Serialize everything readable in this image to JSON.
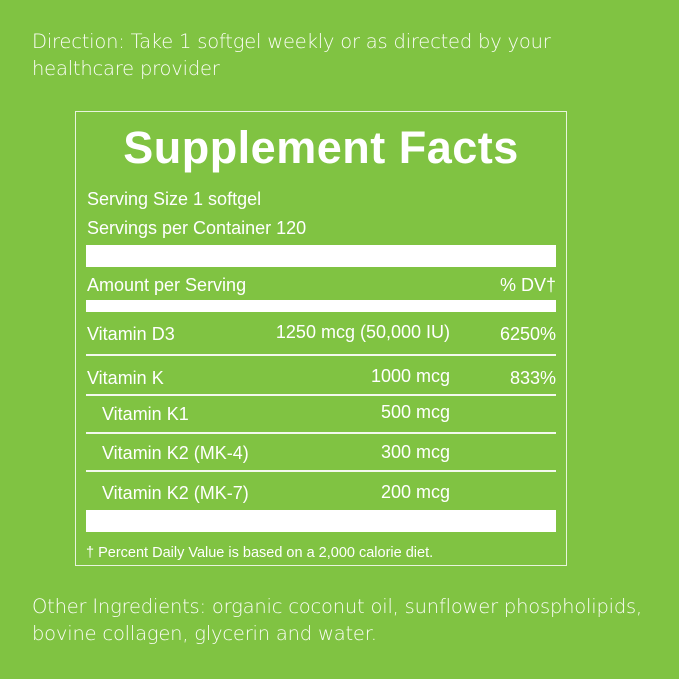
{
  "direction": "Direction: Take 1 softgel weekly or as directed by your healthcare provider",
  "facts": {
    "title": "Supplement Facts",
    "serving_size": "Serving Size 1 softgel",
    "servings_per_container": "Servings per Container 120",
    "amount_header": "Amount per Serving",
    "dv_header": "% DV†",
    "rows": [
      {
        "name": "Vitamin D3",
        "amount": "1250 mcg (50,000 IU)",
        "dv": "6250%"
      },
      {
        "name": "Vitamin K",
        "amount": "1000 mcg",
        "dv": "833%"
      },
      {
        "name": "Vitamin K1",
        "amount": "500 mcg",
        "dv": ""
      },
      {
        "name": "Vitamin K2 (MK-4)",
        "amount": "300 mcg",
        "dv": ""
      },
      {
        "name": "Vitamin K2 (MK-7)",
        "amount": "200 mcg",
        "dv": ""
      }
    ],
    "footnote": "† Percent Daily Value is based on a 2,000 calorie diet."
  },
  "other_ingredients": "Other Ingredients: organic coconut oil, sunflower phospholipids, bovine collagen, glycerin and water.",
  "colors": {
    "background": "#80c342",
    "text": "#ffffff"
  }
}
